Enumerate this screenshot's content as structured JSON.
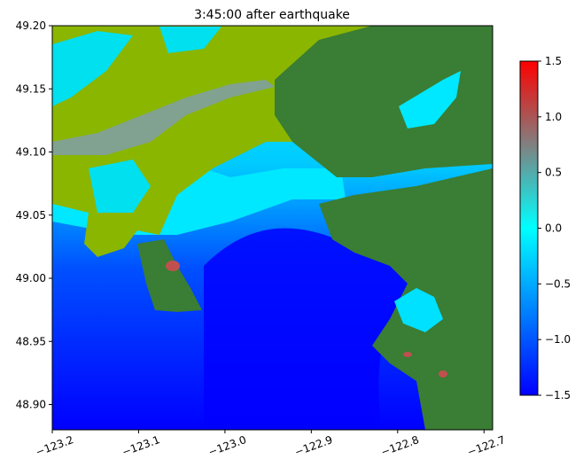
{
  "chart_data": {
    "type": "heatmap",
    "title": "3:45:00 after earthquake",
    "xlabel": "",
    "ylabel": "",
    "xlim": [
      -123.2,
      -122.69
    ],
    "ylim": [
      48.88,
      49.2
    ],
    "x_ticks": [
      -123.2,
      -123.1,
      -123.0,
      -122.9,
      -122.8,
      -122.7
    ],
    "x_tick_labels": [
      "−123.2",
      "−123.1",
      "−123.0",
      "−122.9",
      "−122.8",
      "−122.7"
    ],
    "y_ticks": [
      48.9,
      48.95,
      49.0,
      49.05,
      49.1,
      49.15,
      49.2
    ],
    "y_tick_labels": [
      "48.90",
      "48.95",
      "49.00",
      "49.05",
      "49.10",
      "49.15",
      "49.20"
    ],
    "colorbar": {
      "min": -1.5,
      "max": 1.5,
      "ticks": [
        -1.5,
        -1.0,
        -0.5,
        0.0,
        0.5,
        1.0,
        1.5
      ],
      "tick_labels": [
        "−1.5",
        "−1.0",
        "−0.5",
        "0.0",
        "0.5",
        "1.0",
        "1.5"
      ],
      "stops": [
        {
          "value": -1.5,
          "color": "#0000ff"
        },
        {
          "value": -0.75,
          "color": "#0080ff"
        },
        {
          "value": 0.0,
          "color": "#00ffff"
        },
        {
          "value": 0.75,
          "color": "#808080"
        },
        {
          "value": 1.5,
          "color": "#ff0000"
        }
      ]
    },
    "land_colors": {
      "low": "#8ab600",
      "high": "#3a7d34"
    },
    "grid": false
  }
}
